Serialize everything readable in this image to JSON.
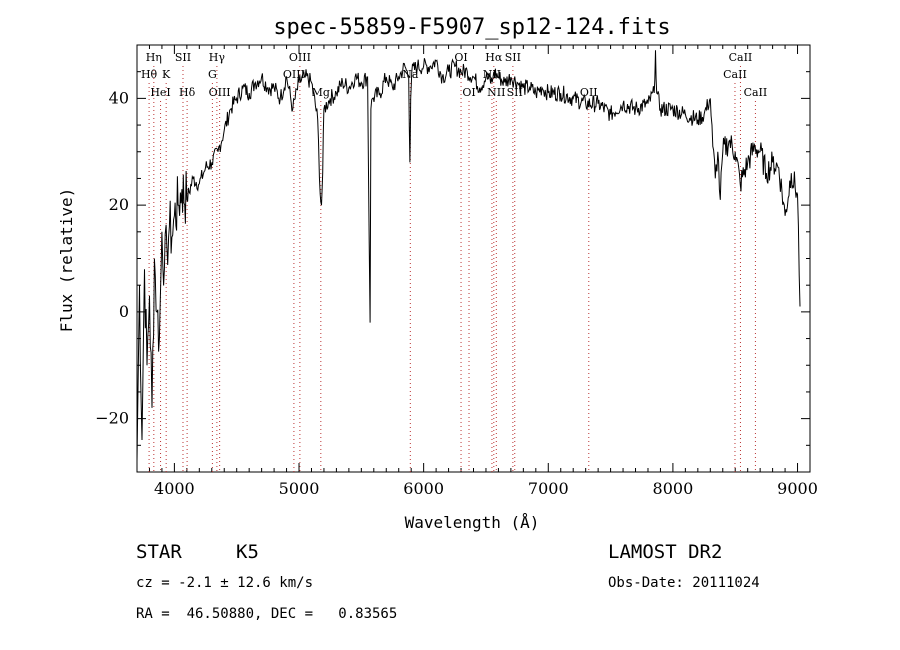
{
  "header": {
    "title": "spec-55859-F5907_sp12-124.fits"
  },
  "footer": {
    "class_label": "STAR",
    "subclass_label": "K5",
    "survey": "LAMOST DR2",
    "cz": "cz = -2.1 ± 12.6 km/s",
    "obs_date": "Obs-Date: 20111024",
    "coords": "RA =  46.50880, DEC =   0.83565"
  },
  "chart_data": {
    "type": "line",
    "title": "spec-55859-F5907_sp12-124.fits",
    "xlabel": "Wavelength (Å)",
    "ylabel": "Flux (relative)",
    "xlim": [
      3700,
      9100
    ],
    "ylim": [
      -30,
      50
    ],
    "xticks": [
      4000,
      5000,
      6000,
      7000,
      8000,
      9000
    ],
    "yticks": [
      -20,
      0,
      20,
      40
    ],
    "grid": false,
    "series": [
      {
        "values_x": [
          3700,
          3720,
          3740,
          3760,
          3780,
          3800,
          3820,
          3840,
          3860,
          3880,
          3900,
          3920,
          3940,
          3960,
          3980,
          4000,
          4030,
          4060,
          4100,
          4150,
          4200,
          4250,
          4300,
          4350,
          4400,
          4450,
          4500,
          4550,
          4600,
          4650,
          4700,
          4750,
          4800,
          4850,
          4900,
          4950,
          5000,
          5050,
          5100,
          5150,
          5170,
          5180,
          5190,
          5200,
          5250,
          5300,
          5350,
          5400,
          5450,
          5500,
          5550,
          5570,
          5577,
          5590,
          5650,
          5700,
          5750,
          5800,
          5850,
          5880,
          5890,
          5896,
          5905,
          5950,
          6000,
          6050,
          6100,
          6150,
          6200,
          6250,
          6300,
          6350,
          6400,
          6450,
          6500,
          6550,
          6563,
          6600,
          6650,
          6700,
          6750,
          6800,
          6850,
          6900,
          6950,
          7000,
          7100,
          7200,
          7300,
          7400,
          7500,
          7600,
          7700,
          7800,
          7850,
          7860,
          7870,
          7900,
          8000,
          8100,
          8200,
          8250,
          8300,
          8320,
          8340,
          8360,
          8380,
          8400,
          8450,
          8500,
          8540,
          8600,
          8660,
          8700,
          8750,
          8800,
          8850,
          8900,
          8950,
          9000,
          9020
        ],
        "values_y": [
          -28,
          5,
          -24,
          8,
          -10,
          3,
          -18,
          10,
          0,
          -5,
          15,
          8,
          12,
          16,
          14,
          18,
          20,
          23,
          21,
          25,
          24,
          27,
          28,
          30,
          34,
          38,
          40,
          42,
          41,
          43,
          44,
          42,
          42,
          40,
          44,
          38,
          43,
          44,
          43,
          36,
          22,
          20,
          26,
          38,
          40,
          41,
          43,
          42,
          44,
          43,
          44,
          -2,
          38,
          40,
          41,
          44,
          42,
          44,
          46,
          44,
          28,
          40,
          45,
          46,
          46,
          46,
          47,
          44,
          45,
          46,
          45,
          45,
          44,
          42,
          44,
          43,
          45,
          44,
          43,
          44,
          43,
          42,
          42,
          41,
          42,
          41,
          41,
          40,
          39,
          39,
          37,
          39,
          38,
          39,
          41,
          49,
          41,
          38,
          38,
          37,
          36,
          37,
          40,
          31,
          25,
          30,
          21,
          30,
          32,
          30,
          24,
          28,
          31,
          30,
          26,
          28,
          27,
          18,
          26,
          22,
          1
        ]
      }
    ],
    "annotations": [
      {
        "label": "Hη",
        "x": 3835,
        "row": 1
      },
      {
        "label": "Hθ",
        "x": 3797,
        "row": 2
      },
      {
        "label": "HeI",
        "x": 3889,
        "row": 3
      },
      {
        "label": "SII",
        "x": 4069,
        "row": 1
      },
      {
        "label": "K",
        "x": 3934,
        "row": 2
      },
      {
        "label": "Hδ",
        "x": 4102,
        "row": 3
      },
      {
        "label": "Hγ",
        "x": 4341,
        "row": 1
      },
      {
        "label": "G",
        "x": 4305,
        "row": 2
      },
      {
        "label": "OIII",
        "x": 4363,
        "row": 3
      },
      {
        "label": "OIII",
        "x": 5007,
        "row": 1
      },
      {
        "label": "OIII",
        "x": 4959,
        "row": 2
      },
      {
        "label": "Mg",
        "x": 5175,
        "row": 3
      },
      {
        "label": "Na",
        "x": 5893,
        "row": 2
      },
      {
        "label": "OI",
        "x": 6300,
        "row": 1
      },
      {
        "label": "OI",
        "x": 6364,
        "row": 3
      },
      {
        "label": "Hα",
        "x": 6563,
        "row": 1
      },
      {
        "label": "NII",
        "x": 6548,
        "row": 2
      },
      {
        "label": "NII",
        "x": 6583,
        "row": 3
      },
      {
        "label": "SII",
        "x": 6716,
        "row": 1
      },
      {
        "label": "SII",
        "x": 6731,
        "row": 3
      },
      {
        "label": "OII",
        "x": 7325,
        "row": 3
      },
      {
        "label": "CaII",
        "x": 8542,
        "row": 1
      },
      {
        "label": "CaII",
        "x": 8498,
        "row": 2
      },
      {
        "label": "CaII",
        "x": 8662,
        "row": 3
      }
    ]
  }
}
